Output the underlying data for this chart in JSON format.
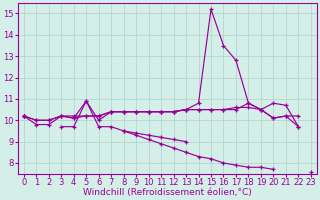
{
  "x": [
    0,
    1,
    2,
    3,
    4,
    5,
    6,
    7,
    8,
    9,
    10,
    11,
    12,
    13,
    14,
    15,
    16,
    17,
    18,
    19,
    20,
    21,
    22,
    23
  ],
  "lines": [
    [
      10.2,
      9.8,
      9.8,
      10.2,
      10.1,
      10.9,
      10.0,
      10.4,
      10.4,
      10.4,
      10.4,
      10.4,
      10.4,
      10.5,
      10.8,
      15.2,
      13.5,
      12.8,
      10.8,
      10.5,
      10.8,
      10.7,
      9.7,
      null
    ],
    [
      10.2,
      10.0,
      10.0,
      10.2,
      10.2,
      10.2,
      10.2,
      10.4,
      10.4,
      10.4,
      10.4,
      10.4,
      10.4,
      10.5,
      10.5,
      10.5,
      10.5,
      10.5,
      10.8,
      10.5,
      10.1,
      10.2,
      10.2,
      null
    ],
    [
      10.2,
      null,
      null,
      9.7,
      9.7,
      10.9,
      9.7,
      9.7,
      9.5,
      9.4,
      9.3,
      9.2,
      9.1,
      9.0,
      null,
      null,
      null,
      null,
      null,
      null,
      null,
      null,
      null,
      null
    ],
    [
      10.2,
      null,
      null,
      null,
      null,
      null,
      null,
      null,
      9.5,
      9.3,
      9.1,
      8.9,
      8.7,
      8.5,
      8.3,
      8.2,
      8.0,
      7.9,
      7.8,
      7.8,
      7.7,
      null,
      null,
      7.6
    ],
    [
      10.2,
      10.0,
      10.0,
      10.2,
      10.1,
      10.2,
      10.2,
      10.4,
      10.4,
      10.4,
      10.4,
      10.4,
      10.4,
      10.5,
      10.5,
      10.5,
      10.5,
      10.6,
      10.6,
      10.5,
      10.1,
      10.2,
      9.7,
      null
    ]
  ],
  "background_color": "#d4eee8",
  "grid_color": "#b0d0cc",
  "line_color": "#990099",
  "marker": "+",
  "marker_size": 3.5,
  "linewidth": 0.85,
  "xlabel": "Windchill (Refroidissement éolien,°C)",
  "xlabel_fontsize": 6.5,
  "tick_fontsize": 6,
  "ylim": [
    7.5,
    15.5
  ],
  "yticks": [
    8,
    9,
    10,
    11,
    12,
    13,
    14,
    15
  ],
  "xlim": [
    -0.5,
    23.5
  ],
  "xticks": [
    0,
    1,
    2,
    3,
    4,
    5,
    6,
    7,
    8,
    9,
    10,
    11,
    12,
    13,
    14,
    15,
    16,
    17,
    18,
    19,
    20,
    21,
    22,
    23
  ]
}
